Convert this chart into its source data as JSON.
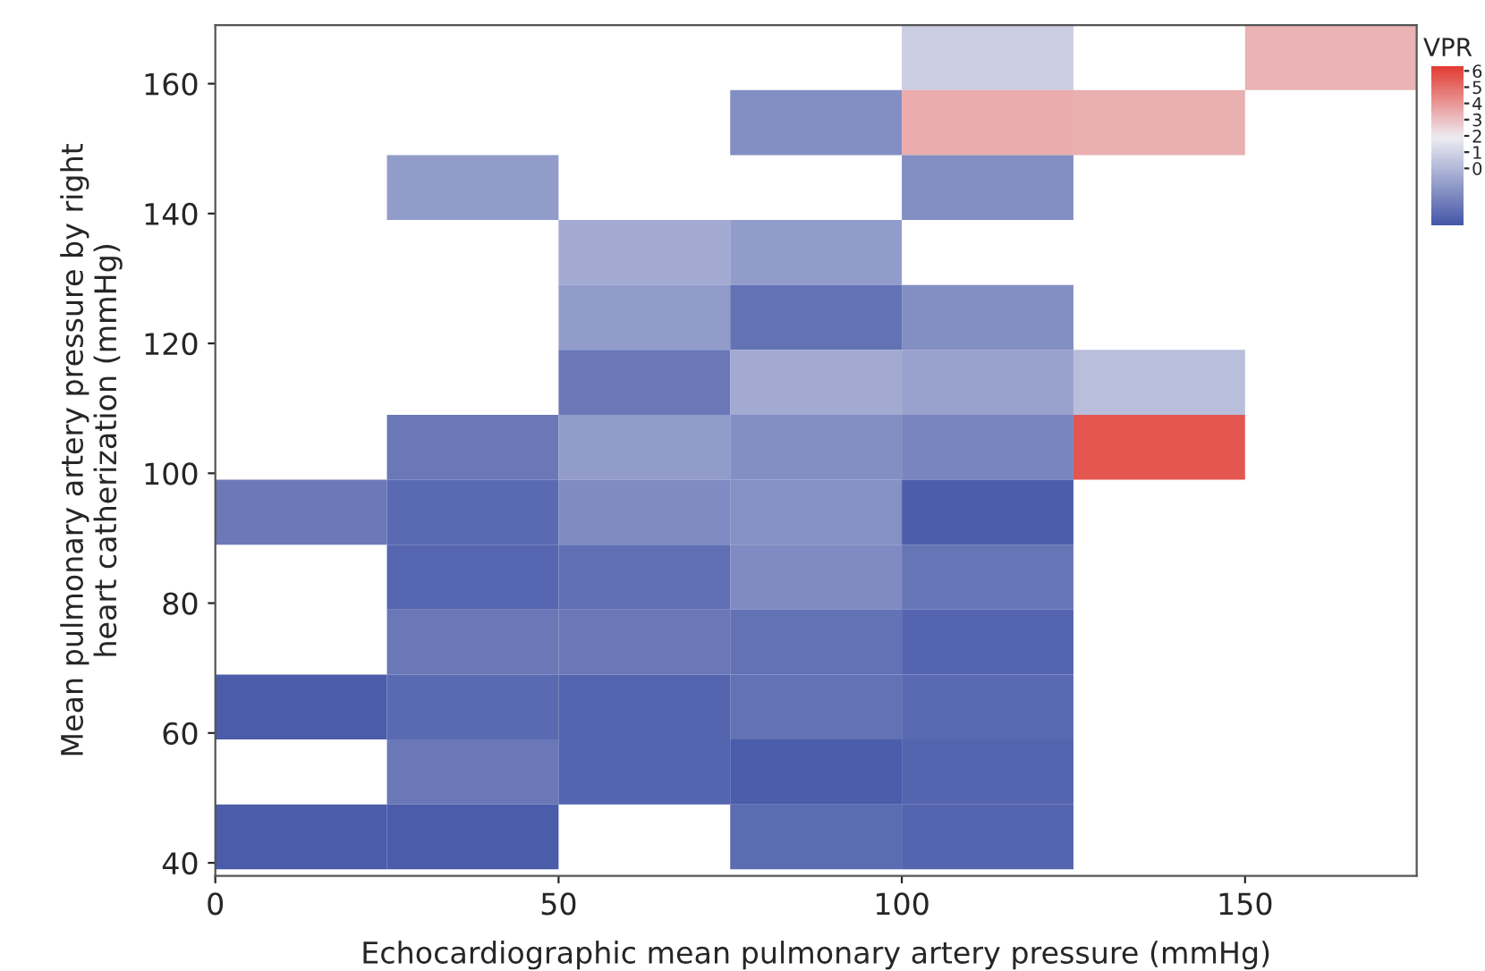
{
  "chart_data": {
    "type": "heatmap",
    "xlabel": "Echocardiographic mean pulmonary artery pressure (mmHg)",
    "ylabel": "Mean pulmonary artery pressure by right\nheart catherization (mmHg)",
    "clabel": "VPR",
    "x": [
      12.5,
      37.5,
      62.5,
      87.5,
      112.5,
      137.5,
      162.5
    ],
    "y": [
      164,
      154,
      144,
      134,
      124,
      114,
      104,
      94,
      84,
      74,
      64,
      54,
      44
    ],
    "cells": [
      [
        null,
        null,
        null,
        null,
        0.8,
        null,
        3.3
      ],
      [
        null,
        null,
        null,
        -1.5,
        3.5,
        3.4,
        null
      ],
      [
        null,
        -1,
        null,
        null,
        -1.5,
        null,
        null
      ],
      [
        null,
        null,
        -0.5,
        -1,
        null,
        null,
        null
      ],
      [
        null,
        null,
        -1,
        -2.5,
        -1.5,
        null,
        null
      ],
      [
        null,
        null,
        -2.3,
        -0.5,
        -0.8,
        0.2,
        null
      ],
      [
        null,
        -2.3,
        -1,
        -1.5,
        -1.8,
        5.6,
        null
      ],
      [
        -2.2,
        -2.8,
        -1.6,
        -1.4,
        -3.2,
        null,
        null
      ],
      [
        null,
        -2.9,
        -2.6,
        -1.6,
        -2.4,
        null,
        null
      ],
      [
        null,
        -2.3,
        -2.3,
        -2.5,
        -3,
        null,
        null
      ],
      [
        -3.3,
        -2.8,
        -3,
        -2.5,
        -2.8,
        null,
        null
      ],
      [
        null,
        -2.3,
        -3,
        -3.3,
        -3,
        null,
        null
      ],
      [
        -3.3,
        -3.3,
        null,
        -2.7,
        -3,
        null,
        null
      ]
    ],
    "xlim": [
      0,
      175
    ],
    "ylim": [
      38,
      169
    ],
    "xticks": [
      0,
      50,
      100,
      150
    ],
    "yticks": [
      40,
      60,
      80,
      100,
      120,
      140,
      160
    ],
    "clim": [
      -3.5,
      6.3
    ],
    "cticks": [
      0,
      1,
      2,
      3,
      4,
      5,
      6
    ],
    "grid": false
  }
}
